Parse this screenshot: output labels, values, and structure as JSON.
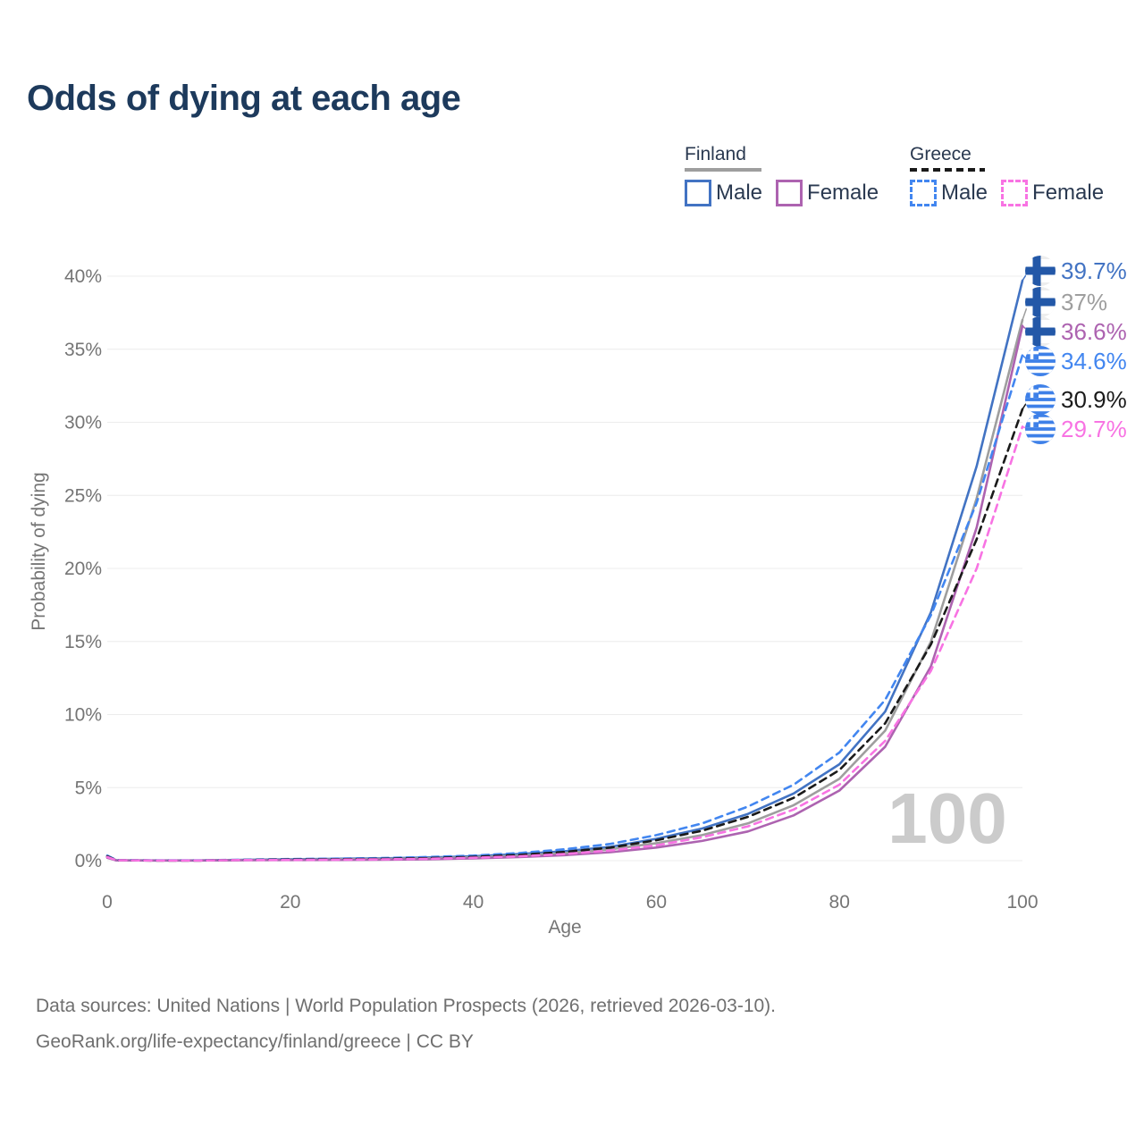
{
  "title": "Odds of dying at each age",
  "legend": {
    "groups": [
      {
        "label": "Finland",
        "line_style": "solid",
        "line_color": "#9e9e9e",
        "items": [
          {
            "label": "Male",
            "color": "#4273c3",
            "style": "solid"
          },
          {
            "label": "Female",
            "color": "#ad63b0",
            "style": "solid"
          }
        ]
      },
      {
        "label": "Greece",
        "line_style": "dashed",
        "line_color": "#1a1a1a",
        "items": [
          {
            "label": "Male",
            "color": "#4286f0",
            "style": "dashed"
          },
          {
            "label": "Female",
            "color": "#f873e3",
            "style": "dashed"
          }
        ]
      }
    ]
  },
  "watermark": "100",
  "footer": {
    "line1": "Data sources: United Nations | World Population Prospects (2026, retrieved 2026-03-10).",
    "line2": "GeoRank.org/life-expectancy/finland/greece | CC BY"
  },
  "chart_data": {
    "type": "line",
    "title": "Odds of dying at each age",
    "xlabel": "Age",
    "ylabel": "Probability of dying",
    "xlim": [
      0,
      100
    ],
    "ylim": [
      0,
      40
    ],
    "grid": "horizontal-only",
    "legend_position": "top-right",
    "xticks": [
      0,
      20,
      40,
      60,
      80,
      100
    ],
    "xtick_labels": [
      "0",
      "20",
      "40",
      "60",
      "80",
      "100"
    ],
    "yticks": [
      0,
      5,
      10,
      15,
      20,
      25,
      30,
      35,
      40
    ],
    "ytick_labels": [
      "0%",
      "5%",
      "10%",
      "15%",
      "20%",
      "25%",
      "30%",
      "35%",
      "40%"
    ],
    "x": [
      0,
      1,
      5,
      10,
      15,
      20,
      25,
      30,
      35,
      40,
      45,
      50,
      55,
      60,
      65,
      70,
      75,
      80,
      85,
      90,
      95,
      100
    ],
    "series": [
      {
        "name": "Finland Male",
        "country": "Finland",
        "sex": "Male",
        "dash": "solid",
        "color": "#4273c3",
        "end_label": "39.7%",
        "flag": "finland",
        "values": [
          0.25,
          0.03,
          0.02,
          0.02,
          0.06,
          0.1,
          0.13,
          0.16,
          0.22,
          0.3,
          0.45,
          0.65,
          0.95,
          1.5,
          2.2,
          3.2,
          4.6,
          6.6,
          10.2,
          17.0,
          27.0,
          39.7
        ]
      },
      {
        "name": "Finland Both sexes",
        "country": "Finland",
        "sex": "Both",
        "dash": "solid",
        "color": "#9e9e9e",
        "end_label": "37%",
        "flag": "finland",
        "values": [
          0.22,
          0.03,
          0.015,
          0.015,
          0.045,
          0.07,
          0.09,
          0.12,
          0.16,
          0.23,
          0.35,
          0.52,
          0.78,
          1.2,
          1.75,
          2.55,
          3.8,
          5.6,
          8.9,
          15.0,
          24.8,
          37.0
        ]
      },
      {
        "name": "Finland Female",
        "country": "Finland",
        "sex": "Female",
        "dash": "solid",
        "color": "#ad63b0",
        "end_label": "36.6%",
        "flag": "finland",
        "values": [
          0.2,
          0.02,
          0.01,
          0.01,
          0.03,
          0.04,
          0.05,
          0.07,
          0.1,
          0.16,
          0.25,
          0.38,
          0.58,
          0.9,
          1.35,
          2.0,
          3.1,
          4.8,
          7.8,
          13.3,
          22.8,
          36.6
        ]
      },
      {
        "name": "Greece Male",
        "country": "Greece",
        "sex": "Male",
        "dash": "dashed",
        "color": "#4286f0",
        "end_label": "34.6%",
        "flag": "greece",
        "values": [
          0.35,
          0.04,
          0.02,
          0.02,
          0.07,
          0.11,
          0.14,
          0.18,
          0.25,
          0.35,
          0.52,
          0.78,
          1.15,
          1.75,
          2.55,
          3.7,
          5.2,
          7.4,
          11.0,
          16.8,
          24.5,
          34.6
        ]
      },
      {
        "name": "Greece Both sexes",
        "country": "Greece",
        "sex": "Both",
        "dash": "dashed",
        "color": "#1a1a1a",
        "end_label": "30.9%",
        "flag": "greece",
        "values": [
          0.3,
          0.03,
          0.015,
          0.015,
          0.05,
          0.08,
          0.1,
          0.13,
          0.18,
          0.26,
          0.4,
          0.6,
          0.9,
          1.4,
          2.05,
          3.0,
          4.3,
          6.2,
          9.4,
          14.8,
          22.0,
          30.9
        ]
      },
      {
        "name": "Greece Female",
        "country": "Greece",
        "sex": "Female",
        "dash": "dashed",
        "color": "#f873e3",
        "end_label": "29.7%",
        "flag": "greece",
        "values": [
          0.25,
          0.03,
          0.01,
          0.01,
          0.04,
          0.05,
          0.07,
          0.09,
          0.13,
          0.2,
          0.3,
          0.46,
          0.7,
          1.05,
          1.6,
          2.35,
          3.5,
          5.2,
          8.2,
          13.0,
          20.0,
          29.7
        ]
      }
    ],
    "hover_age_indicator": "100",
    "colors": {
      "grid": "#ececec",
      "tick_text": "#757575",
      "title_text": "#1d3a5c",
      "watermark": "#cbcbcb",
      "finland_flag_blue": "#2358a8",
      "greece_flag_blue": "#3e80e8"
    }
  }
}
